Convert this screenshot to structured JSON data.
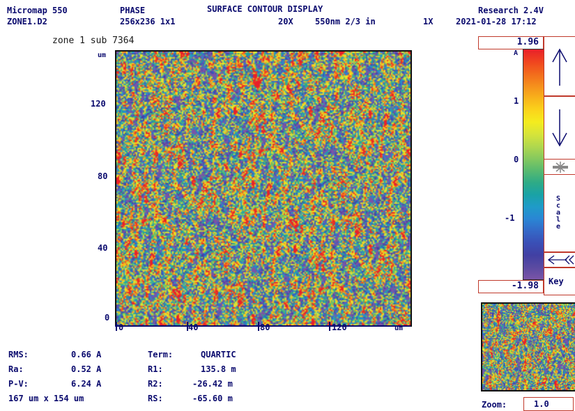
{
  "header": {
    "app_name": "Micromap 550",
    "mode": "PHASE",
    "title": "SURFACE CONTOUR DISPLAY",
    "version": "Research 2.4V",
    "file": "ZONE1.D2",
    "resolution": "256x236 1x1",
    "objective": "20X",
    "wavelength": "550nm 2/3 in",
    "zoom_factor": "1X",
    "datetime": "2021-01-28 17:12"
  },
  "plot": {
    "caption": "zone 1 sub 7364",
    "y_unit": "um",
    "y_ticks": [
      "120",
      "80",
      "40",
      "0"
    ],
    "x_ticks": [
      "0",
      "40",
      "80",
      "120"
    ],
    "x_unit": "um"
  },
  "colorbar": {
    "max": "1.96",
    "min": "-1.98",
    "unit": "A",
    "ticks": [
      "1",
      "0",
      "-1"
    ],
    "colors": [
      "#e8202a",
      "#f0441f",
      "#f26a1c",
      "#f58f1c",
      "#f8b21b",
      "#fbd31b",
      "#f4ec1e",
      "#d6e43a",
      "#b1d84d",
      "#86c95e",
      "#58ba6f",
      "#2eab86",
      "#1aa2a6",
      "#1f9bc8",
      "#2a86d4",
      "#3468c7",
      "#3a4fb6",
      "#4140a3",
      "#5a4aa1",
      "#7a54a7"
    ]
  },
  "controls": {
    "up_arrow": "↑",
    "down_arrow": "↓",
    "scale_label": "Scale",
    "key_label": "Key"
  },
  "stats": {
    "rms_label": "RMS:",
    "rms_value": "0.66 A",
    "ra_label": "Ra:",
    "ra_value": "0.52 A",
    "pv_label": "P-V:",
    "pv_value": "6.24 A",
    "area": "167 um x 154 um",
    "term_label": "Term:",
    "term_value": "QUARTIC",
    "r1_label": "R1:",
    "r1_value": "135.8 m",
    "r2_label": "R2:",
    "r2_value": "-26.42 m",
    "rs_label": "RS:",
    "rs_value": "-65.60 m"
  },
  "zoom": {
    "label": "Zoom:",
    "value": "1.0"
  },
  "colors": {
    "text": "#0a0a6e",
    "frame": "#c0392b"
  }
}
